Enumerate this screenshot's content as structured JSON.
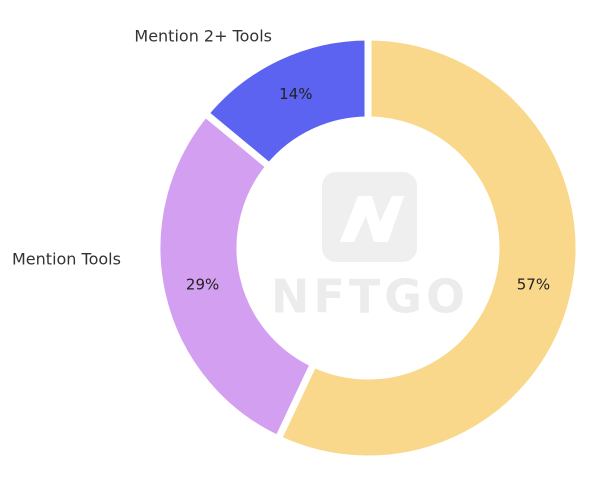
{
  "chart_data": {
    "type": "donut",
    "categories": [
      null,
      "Mention Tools",
      "Mention 2+ Tools"
    ],
    "values": [
      57,
      29,
      14
    ],
    "value_labels": [
      "57%",
      "29%",
      "14%"
    ],
    "colors": [
      "#f9d88c",
      "#d39ff0",
      "#5b63f0"
    ],
    "watermark": "NFTGO"
  }
}
